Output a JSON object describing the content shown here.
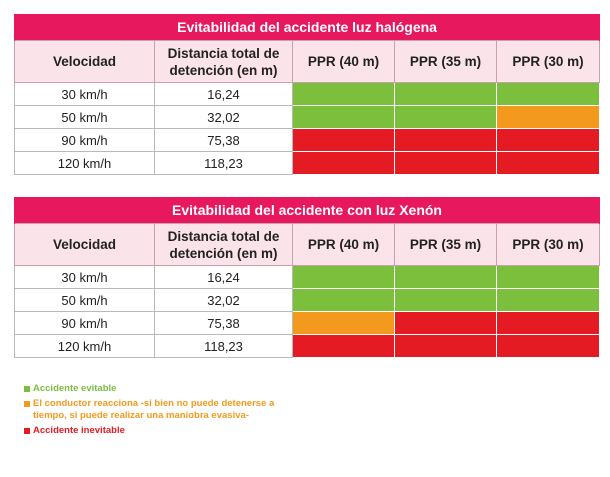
{
  "tables": [
    {
      "title": "Evitabilidad del accidente luz halógena",
      "headers": [
        "Velocidad",
        "Distancia total de\ndetención (en m)",
        "PPR (40 m)",
        "PPR (35 m)",
        "PPR (30 m)"
      ],
      "rows": [
        {
          "speed": "30 km/h",
          "distance": "16,24",
          "outcomes": [
            "evitable",
            "evitable",
            "evitable"
          ]
        },
        {
          "speed": "50 km/h",
          "distance": "32,02",
          "outcomes": [
            "evitable",
            "evitable",
            "maniobra"
          ]
        },
        {
          "speed": "90 km/h",
          "distance": "75,38",
          "outcomes": [
            "inevitable",
            "inevitable",
            "inevitable"
          ]
        },
        {
          "speed": "120 km/h",
          "distance": "118,23",
          "outcomes": [
            "inevitable",
            "inevitable",
            "inevitable"
          ]
        }
      ]
    },
    {
      "title": "Evitabilidad del accidente con luz Xenón",
      "headers": [
        "Velocidad",
        "Distancia total de\ndetención (en m)",
        "PPR (40 m)",
        "PPR (35 m)",
        "PPR (30 m)"
      ],
      "rows": [
        {
          "speed": "30 km/h",
          "distance": "16,24",
          "outcomes": [
            "evitable",
            "evitable",
            "evitable"
          ]
        },
        {
          "speed": "50 km/h",
          "distance": "32,02",
          "outcomes": [
            "evitable",
            "evitable",
            "evitable"
          ]
        },
        {
          "speed": "90 km/h",
          "distance": "75,38",
          "outcomes": [
            "maniobra",
            "inevitable",
            "inevitable"
          ]
        },
        {
          "speed": "120 km/h",
          "distance": "118,23",
          "outcomes": [
            "inevitable",
            "inevitable",
            "inevitable"
          ]
        }
      ]
    }
  ],
  "legend": [
    {
      "key": "evitable",
      "label": "Accidente evitable",
      "color": "#7bbf3d"
    },
    {
      "key": "maniobra",
      "label": "El conductor reacciona -si bien no puede detenerse a\ntiempo, si puede realizar una maniobra evasiva-",
      "color": "#f39a1e"
    },
    {
      "key": "inevitable",
      "label": "Accidente inevitable",
      "color": "#e51b23"
    }
  ]
}
